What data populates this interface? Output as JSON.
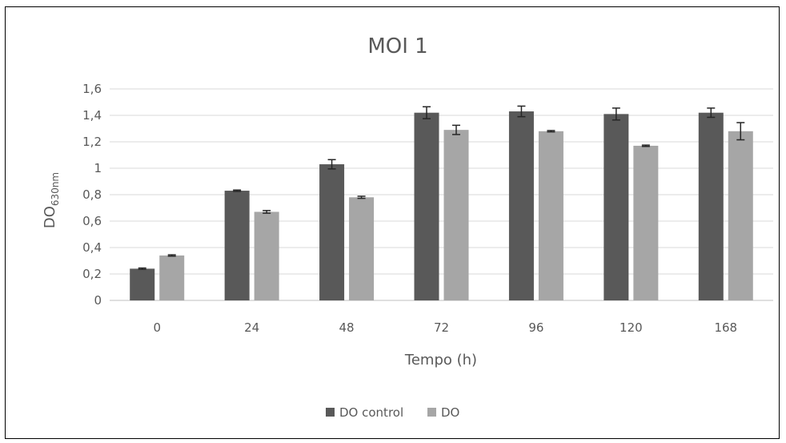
{
  "chart_data": {
    "type": "bar",
    "title": "MOI 1",
    "xlabel": "Tempo (h)",
    "ylabel": {
      "main": "DO",
      "subscript": "630nm"
    },
    "categories": [
      "0",
      "24",
      "48",
      "72",
      "96",
      "120",
      "168"
    ],
    "ylim": [
      0,
      1.6
    ],
    "yticks": [
      "0",
      "0,2",
      "0,4",
      "0,6",
      "0,8",
      "1",
      "1,2",
      "1,4",
      "1,6"
    ],
    "grid": true,
    "legend_position": "bottom",
    "series": [
      {
        "name": "DO control",
        "color": "#595959",
        "values": [
          0.24,
          0.83,
          1.03,
          1.42,
          1.43,
          1.41,
          1.42
        ],
        "errors": [
          0.005,
          0.005,
          0.035,
          0.045,
          0.04,
          0.045,
          0.035
        ]
      },
      {
        "name": "DO",
        "color": "#a6a6a6",
        "values": [
          0.34,
          0.67,
          0.78,
          1.29,
          1.28,
          1.17,
          1.28
        ],
        "errors": [
          0.005,
          0.01,
          0.008,
          0.035,
          0.005,
          0.005,
          0.065
        ]
      }
    ]
  }
}
